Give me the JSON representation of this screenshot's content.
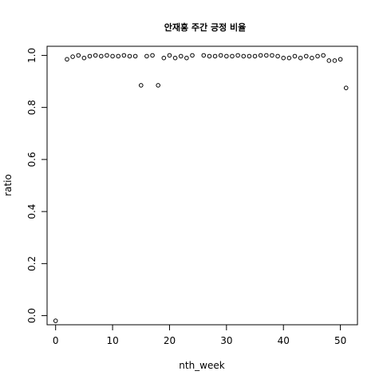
{
  "chart_data": {
    "type": "scatter",
    "title": "안재홍 주간 긍정 비율",
    "xlabel": "nth_week",
    "ylabel": "ratio",
    "xlim": [
      -1.5,
      53.0
    ],
    "ylim": [
      -0.035,
      1.035
    ],
    "xticks": [
      0,
      10,
      20,
      30,
      40,
      50
    ],
    "yticks": [
      0.0,
      0.2,
      0.4,
      0.6,
      0.8,
      1.0
    ],
    "xtick_labels": [
      "0",
      "10",
      "20",
      "30",
      "40",
      "50"
    ],
    "ytick_labels": [
      "0.0",
      "0.2",
      "0.4",
      "0.6",
      "0.8",
      "1.0"
    ],
    "grid": false,
    "legend": "none",
    "point_color": "#000000",
    "x": [
      0,
      2,
      3,
      4,
      5,
      6,
      7,
      8,
      9,
      10,
      11,
      12,
      13,
      14,
      15,
      16,
      17,
      18,
      19,
      20,
      21,
      22,
      23,
      24,
      26,
      27,
      28,
      29,
      30,
      31,
      32,
      33,
      34,
      35,
      36,
      37,
      38,
      39,
      40,
      41,
      42,
      43,
      44,
      45,
      46,
      47,
      48,
      49,
      50,
      51
    ],
    "y": [
      -0.02,
      0.985,
      0.995,
      1.0,
      0.99,
      0.997,
      1.0,
      0.997,
      1.0,
      0.997,
      0.997,
      1.0,
      0.997,
      0.997,
      0.885,
      0.997,
      1.0,
      0.885,
      0.99,
      1.0,
      0.99,
      0.997,
      0.99,
      1.0,
      1.0,
      0.997,
      0.997,
      1.0,
      0.997,
      0.997,
      1.0,
      0.997,
      0.997,
      0.997,
      1.0,
      1.0,
      1.0,
      0.997,
      0.99,
      0.99,
      0.997,
      0.99,
      0.997,
      0.99,
      0.997,
      1.0,
      0.98,
      0.98,
      0.985,
      0.875
    ]
  }
}
